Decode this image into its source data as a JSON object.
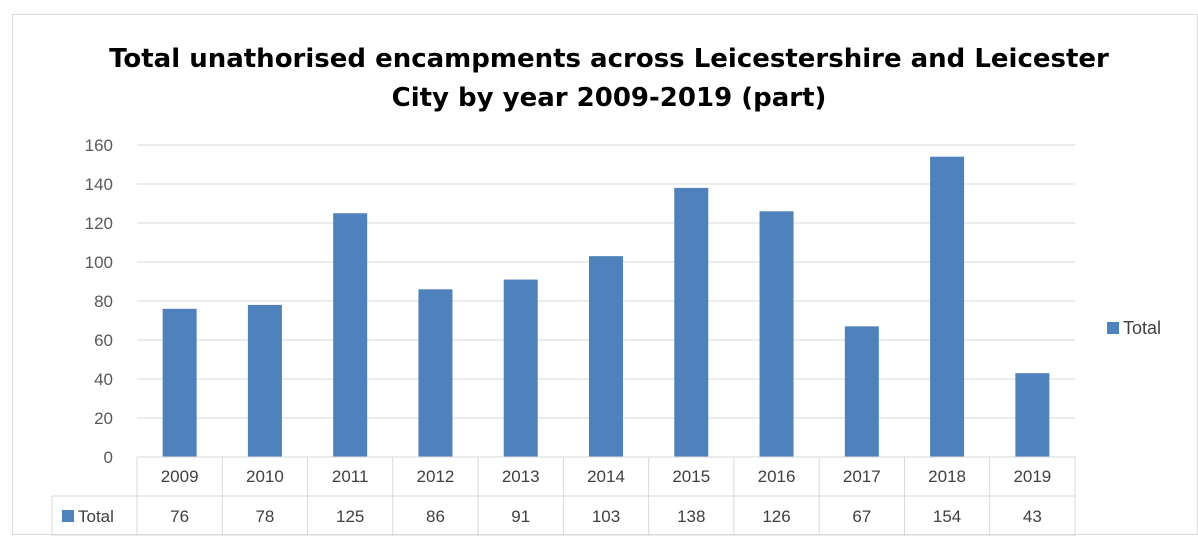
{
  "chart_data": {
    "type": "bar",
    "title": "Total unathorised encampments across Leicestershire and Leicester City by year 2009-2019 (part)",
    "title_lines": [
      "Total unathorised encampments across Leicestershire and Leicester",
      "City by year 2009-2019 (part)"
    ],
    "categories": [
      "2009",
      "2010",
      "2011",
      "2012",
      "2013",
      "2014",
      "2015",
      "2016",
      "2017",
      "2018",
      "2019"
    ],
    "series": [
      {
        "name": "Total",
        "values": [
          76,
          78,
          125,
          86,
          91,
          103,
          138,
          126,
          67,
          154,
          43
        ],
        "color": "#4f81bd"
      }
    ],
    "ylim": [
      0,
      160
    ],
    "yticks": [
      0,
      20,
      40,
      60,
      80,
      100,
      120,
      140,
      160
    ],
    "grid": true,
    "legend": "right",
    "data_table": true
  }
}
